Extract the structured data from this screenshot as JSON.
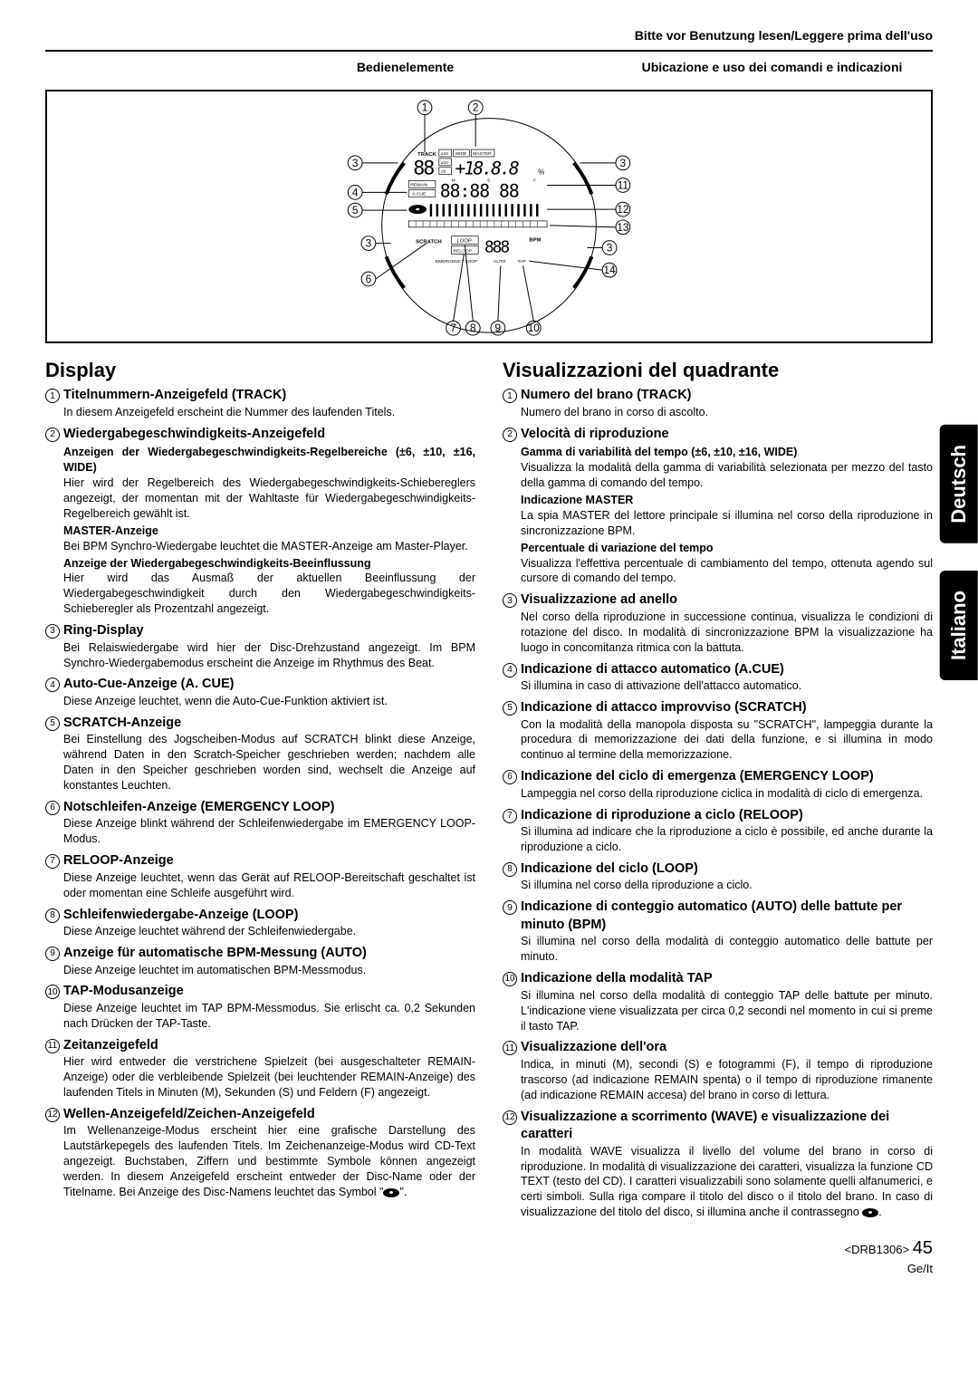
{
  "header": {
    "top": "Bitte vor Benutzung lesen/Leggere prima dell'uso",
    "left": "Bedienelemente",
    "right": "Ubicazione e uso dei comandi e indicazioni"
  },
  "diagram": {
    "callouts_top": [
      "1",
      "2"
    ],
    "callouts_left": [
      "3",
      "4",
      "5",
      "3",
      "6"
    ],
    "callouts_right": [
      "3",
      "11",
      "12",
      "13",
      "3",
      "14"
    ],
    "callouts_bottom": [
      "7",
      "8",
      "9",
      "10"
    ],
    "labels": [
      "TRACK",
      "±16",
      "WIDE",
      "MASTER",
      "±10",
      "±6",
      "REMAIN",
      "A.CUE",
      "M",
      "S",
      "F",
      "SCRATCH",
      "LOOP",
      "RELOOP",
      "BPM",
      "EMERGENCY LOOP",
      "AUTO",
      "TAP"
    ]
  },
  "tabs": {
    "de": "Deutsch",
    "it": "Italiano"
  },
  "left_col": {
    "title": "Display",
    "items": [
      {
        "n": "1",
        "head": "Titelnummern-Anzeigefeld (TRACK)",
        "body": [
          "In diesem Anzeigefeld erscheint die Nummer des laufenden Titels."
        ]
      },
      {
        "n": "2",
        "head": "Wiedergabegeschwindigkeits-Anzeigefeld",
        "body": [
          {
            "b": "Anzeigen der Wiedergabegeschwindigkeits-Regelbereiche (±6, ±10, ±16, WIDE)"
          },
          "Hier wird der Regelbereich des Wiedergabegeschwindigkeits-Schiebereglers angezeigt, der momentan mit der Wahltaste für Wiedergabegeschwindigkeits-Regelbereich gewählt ist.",
          {
            "b": "MASTER-Anzeige"
          },
          "Bei BPM Synchro-Wiedergabe leuchtet die MASTER-Anzeige am Master-Player.",
          {
            "b": "Anzeige der Wiedergabegeschwindigkeits-Beeinflussung"
          },
          "Hier wird das Ausmaß der aktuellen Beeinflussung der Wiedergabegeschwindigkeit durch den Wiedergabegeschwindigkeits-Schieberegler als Prozentzahl angezeigt."
        ]
      },
      {
        "n": "3",
        "head": "Ring-Display",
        "body": [
          "Bei Relaiswiedergabe wird hier der Disc-Drehzustand angezeigt. Im BPM Synchro-Wiedergabemodus erscheint die Anzeige im Rhythmus des Beat."
        ]
      },
      {
        "n": "4",
        "head": "Auto-Cue-Anzeige (A. CUE)",
        "body": [
          "Diese Anzeige leuchtet, wenn die Auto-Cue-Funktion aktiviert ist."
        ]
      },
      {
        "n": "5",
        "head": "SCRATCH-Anzeige",
        "body": [
          "Bei Einstellung des Jogscheiben-Modus auf SCRATCH blinkt diese Anzeige, während Daten in den Scratch-Speicher geschrieben werden; nachdem alle Daten in den Speicher geschrieben worden sind, wechselt die Anzeige auf konstantes Leuchten."
        ]
      },
      {
        "n": "6",
        "head": "Notschleifen-Anzeige (EMERGENCY LOOP)",
        "body": [
          "Diese Anzeige blinkt während der Schleifenwiedergabe im EMERGENCY LOOP-Modus."
        ]
      },
      {
        "n": "7",
        "head": "RELOOP-Anzeige",
        "body": [
          "Diese Anzeige leuchtet, wenn das Gerät auf RELOOP-Bereitschaft geschaltet ist oder momentan eine Schleife ausgeführt wird."
        ]
      },
      {
        "n": "8",
        "head": "Schleifenwiedergabe-Anzeige (LOOP)",
        "body": [
          "Diese Anzeige leuchtet während der Schleifenwiedergabe."
        ]
      },
      {
        "n": "9",
        "head": "Anzeige für automatische BPM-Messung (AUTO)",
        "body": [
          "Diese Anzeige leuchtet im automatischen BPM-Messmodus."
        ]
      },
      {
        "n": "10",
        "head": "TAP-Modusanzeige",
        "body": [
          "Diese Anzeige leuchtet im TAP BPM-Messmodus. Sie erlischt ca. 0,2 Sekunden nach Drücken der TAP-Taste."
        ]
      },
      {
        "n": "11",
        "head": "Zeitanzeigefeld",
        "body": [
          "Hier wird entweder die verstrichene Spielzeit (bei ausgeschalteter REMAIN-Anzeige) oder die verbleibende Spielzeit (bei leuchtender REMAIN-Anzeige) des laufenden Titels in Minuten (M), Sekunden (S) und Feldern (F) angezeigt."
        ]
      },
      {
        "n": "12",
        "head": "Wellen-Anzeigefeld/Zeichen-Anzeigefeld",
        "body": [
          "Im Wellenanzeige-Modus erscheint hier eine grafische Darstellung des Lautstärkepegels des laufenden Titels. Im Zeichenanzeige-Modus wird CD-Text angezeigt. Buchstaben, Ziffern und bestimmte Symbole können angezeigt werden. In diesem Anzeigefeld erscheint entweder der Disc-Name oder der Titelname. Bei Anzeige des Disc-Namens leuchtet das Symbol \"⬬\"."
        ]
      }
    ]
  },
  "right_col": {
    "title": "Visualizzazioni del quadrante",
    "items": [
      {
        "n": "1",
        "head": "Numero del brano (TRACK)",
        "body": [
          "Numero del brano in corso di ascolto."
        ]
      },
      {
        "n": "2",
        "head": "Velocità di riproduzione",
        "body": [
          {
            "b": "Gamma di variabilità del tempo (±6, ±10, ±16, WIDE)"
          },
          "Visualizza la modalità della gamma di variabilità selezionata per mezzo del tasto della gamma di comando del tempo.",
          {
            "b": "Indicazione MASTER"
          },
          "La spia MASTER del lettore principale si illumina nel corso della riproduzione in sincronizzazione BPM.",
          {
            "b": "Percentuale di variazione del tempo"
          },
          "Visualizza l'effettiva percentuale di cambiamento del tempo, ottenuta agendo sul cursore di comando del tempo."
        ]
      },
      {
        "n": "3",
        "head": "Visualizzazione ad anello",
        "body": [
          "Nel corso della riproduzione in successione continua, visualizza le condizioni di rotazione del disco. In modalità di sincronizzazione BPM la visualizzazione ha luogo in concomitanza ritmica con la battuta."
        ]
      },
      {
        "n": "4",
        "head": "Indicazione di attacco automatico (A.CUE)",
        "body": [
          "Si illumina in caso di attivazione dell'attacco automatico."
        ]
      },
      {
        "n": "5",
        "head": "Indicazione di attacco improvviso (SCRATCH)",
        "body": [
          "Con la modalità della manopola disposta su \"SCRATCH\", lampeggia durante la procedura di memorizzazione dei dati della funzione, e si illumina in modo continuo al termine della memorizzazione."
        ]
      },
      {
        "n": "6",
        "head": "Indicazione del ciclo di emergenza (EMERGENCY LOOP)",
        "body": [
          "Lampeggia nel corso della riproduzione ciclica in modalità di ciclo di emergenza."
        ]
      },
      {
        "n": "7",
        "head": "Indicazione di riproduzione a ciclo (RELOOP)",
        "body": [
          "Si illumina ad indicare che la riproduzione a ciclo è possibile, ed anche durante la riproduzione a ciclo."
        ]
      },
      {
        "n": "8",
        "head": "Indicazione del ciclo (LOOP)",
        "body": [
          "Si illumina nel corso della riproduzione a ciclo."
        ]
      },
      {
        "n": "9",
        "head": "Indicazione di conteggio automatico (AUTO) delle battute per minuto (BPM)",
        "body": [
          "Si illumina nel corso della modalità di conteggio automatico delle battute per minuto."
        ]
      },
      {
        "n": "10",
        "head": "Indicazione della modalità TAP",
        "body": [
          "Si illumina nel corso della modalità di conteggio TAP delle battute per minuto. L'indicazione viene visualizzata per circa 0,2 secondi nel momento in cui si preme il tasto TAP."
        ]
      },
      {
        "n": "11",
        "head": "Visualizzazione dell'ora",
        "body": [
          "Indica, in minuti (M), secondi (S) e fotogrammi (F), il tempo di riproduzione trascorso (ad indicazione REMAIN spenta) o il tempo di riproduzione rimanente (ad indicazione REMAIN accesa) del brano in corso di lettura."
        ]
      },
      {
        "n": "12",
        "head": "Visualizzazione a scorrimento (WAVE) e visualizzazione dei caratteri",
        "body": [
          "In modalità WAVE visualizza il livello del volume del brano in corso di riproduzione. In modalità di visualizzazione dei caratteri, visualizza la funzione CD TEXT (testo del CD). I caratteri visualizzabili sono solamente quelli alfanumerici, e certi simboli. Sulla riga compare il titolo del disco o il titolo del brano. In caso di visualizzazione del titolo del disco, si illumina anche il contrassegno ⬬."
        ]
      }
    ]
  },
  "footer": {
    "code": "<DRB1306>",
    "page": "45",
    "lang": "Ge/It"
  }
}
